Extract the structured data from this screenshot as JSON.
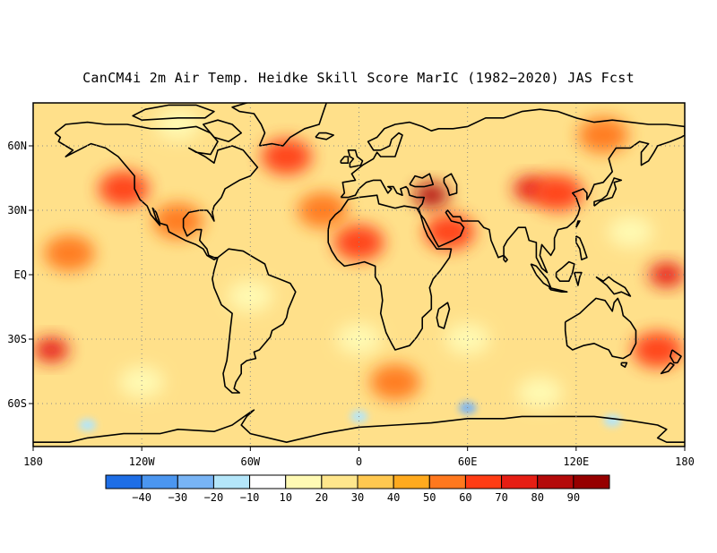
{
  "title": "CanCM4i 2m Air Temp. Heidke Skill Score MarIC (1982−2020) JAS Fcst",
  "map": {
    "lon_range": [
      -180,
      180
    ],
    "lat_range": [
      -80,
      80
    ],
    "x_ticks": [
      {
        "lon": -180,
        "label": "180"
      },
      {
        "lon": -120,
        "label": "120W"
      },
      {
        "lon": -60,
        "label": "60W"
      },
      {
        "lon": 0,
        "label": "0"
      },
      {
        "lon": 60,
        "label": "60E"
      },
      {
        "lon": 120,
        "label": "120E"
      },
      {
        "lon": 180,
        "label": "180"
      }
    ],
    "y_ticks": [
      {
        "lat": 60,
        "label": "60N"
      },
      {
        "lat": 30,
        "label": "30N"
      },
      {
        "lat": 0,
        "label": "EQ"
      },
      {
        "lat": -30,
        "label": "30S"
      },
      {
        "lat": -60,
        "label": "60S"
      }
    ],
    "grid": "dotted"
  },
  "colorbar": {
    "labels": [
      "−40",
      "−30",
      "−20",
      "−10",
      "10",
      "20",
      "30",
      "40",
      "50",
      "60",
      "70",
      "80",
      "90"
    ],
    "colors": [
      "#1e6ee6",
      "#4b96f0",
      "#78b4f5",
      "#b4e6fa",
      "#ffffff",
      "#fffab4",
      "#ffe68c",
      "#ffc850",
      "#ffaa1e",
      "#ff781e",
      "#ff3c14",
      "#e61e14",
      "#b40a0a",
      "#960000"
    ]
  },
  "fields": {
    "background_color": "#ffe08a",
    "hotspots": [
      {
        "lon": 40,
        "lat": 37,
        "level": 80
      },
      {
        "lon": 95,
        "lat": 40,
        "level": 70
      },
      {
        "lon": 110,
        "lat": 38,
        "level": 60
      },
      {
        "lon": 0,
        "lat": 15,
        "level": 60
      },
      {
        "lon": -170,
        "lat": -35,
        "level": 70
      },
      {
        "lon": 170,
        "lat": 0,
        "level": 70
      },
      {
        "lon": 165,
        "lat": -35,
        "level": 60
      },
      {
        "lon": -130,
        "lat": 40,
        "level": 60
      },
      {
        "lon": -40,
        "lat": 55,
        "level": 60
      },
      {
        "lon": -20,
        "lat": 30,
        "level": 50
      },
      {
        "lon": 50,
        "lat": 20,
        "level": 60
      },
      {
        "lon": -100,
        "lat": 25,
        "level": 50
      },
      {
        "lon": 135,
        "lat": 65,
        "level": 50
      },
      {
        "lon": -160,
        "lat": 10,
        "level": 50
      },
      {
        "lon": 20,
        "lat": -50,
        "level": 50
      }
    ],
    "low_skill_regions": [
      {
        "lon": -100,
        "lat": 70,
        "level": 10
      },
      {
        "lon": -60,
        "lat": -10,
        "level": 10
      },
      {
        "lon": 0,
        "lat": -30,
        "level": 10
      },
      {
        "lon": 60,
        "lat": -30,
        "level": 10
      },
      {
        "lon": -120,
        "lat": -50,
        "level": 10
      },
      {
        "lon": 100,
        "lat": -55,
        "level": 10
      },
      {
        "lon": 150,
        "lat": 20,
        "level": 10
      }
    ],
    "negative_regions": [
      {
        "lon": -150,
        "lat": -70,
        "level": -10
      },
      {
        "lon": 0,
        "lat": -66,
        "level": -10
      },
      {
        "lon": 60,
        "lat": -62,
        "level": -20
      },
      {
        "lon": 140,
        "lat": -68,
        "level": -10
      }
    ]
  }
}
